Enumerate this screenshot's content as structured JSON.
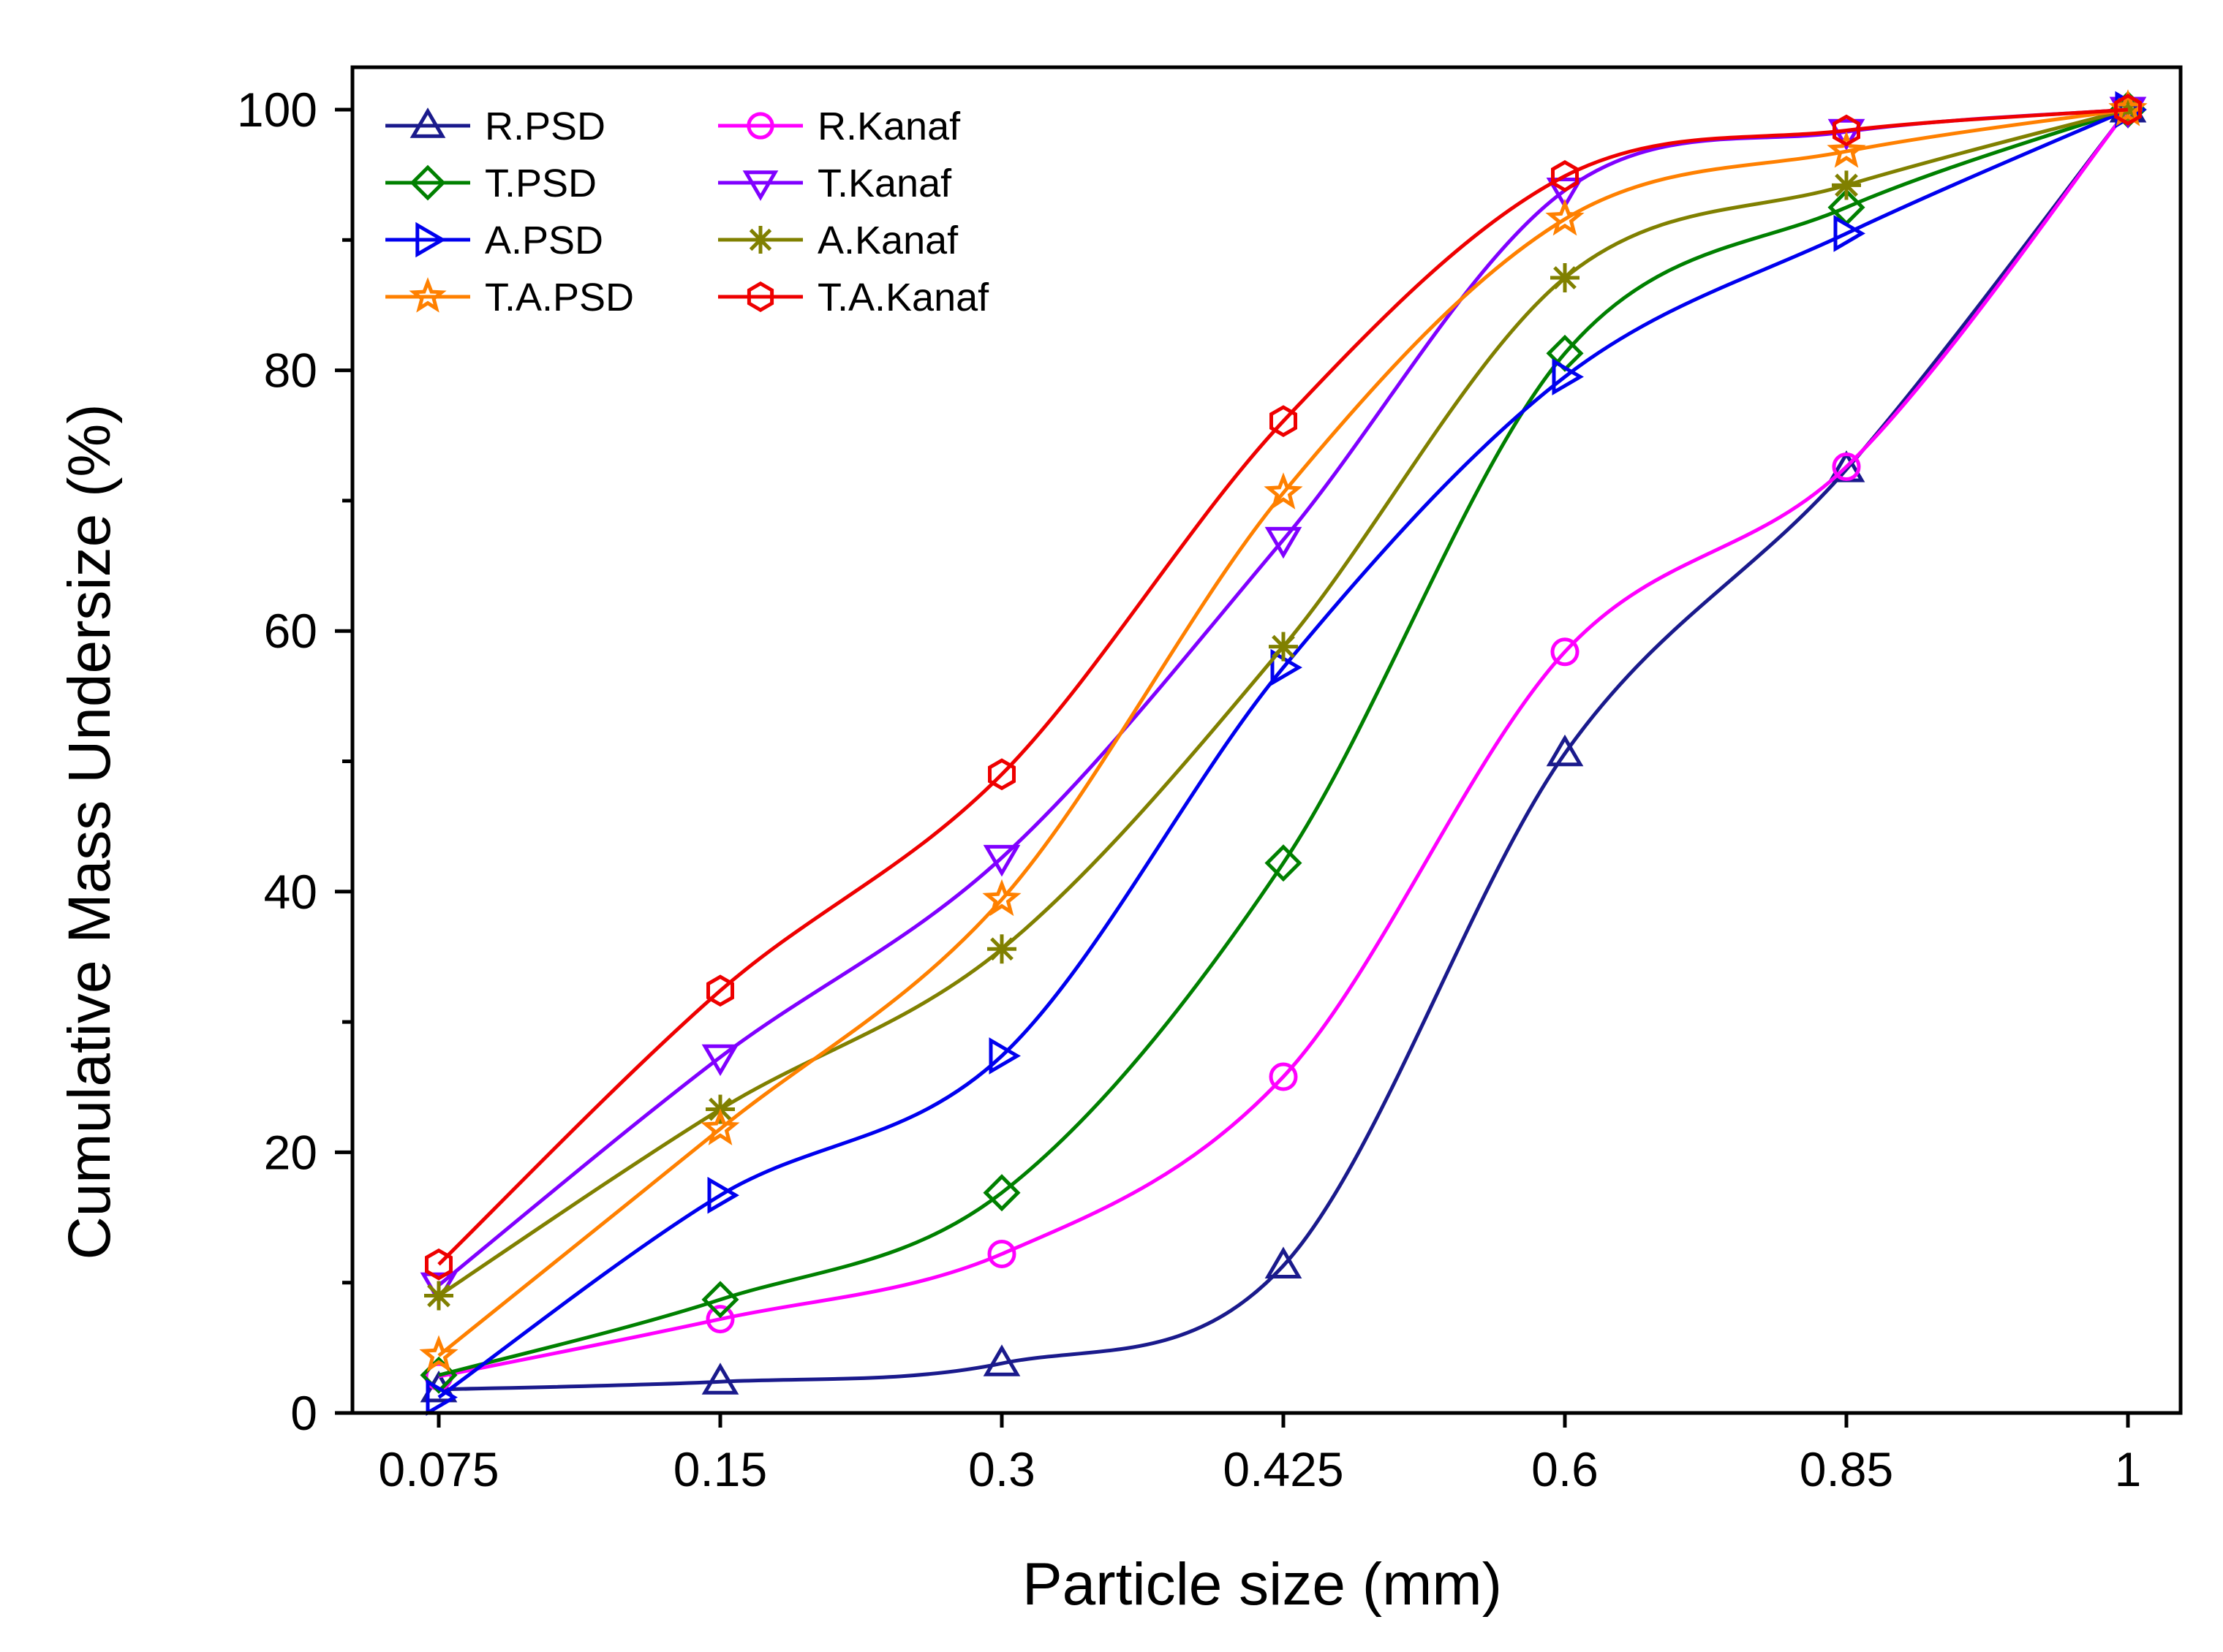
{
  "chart_data": {
    "type": "line",
    "title": "",
    "xlabel": "Particle size (mm)",
    "ylabel": "Cumulative Mass Undersize (%)",
    "categories": [
      "0.075",
      "0.15",
      "0.3",
      "0.425",
      "0.6",
      "0.85",
      "1"
    ],
    "ylim": [
      0,
      100
    ],
    "yticks": [
      0,
      20,
      40,
      60,
      80,
      100
    ],
    "grid": false,
    "legend_position": "top-left",
    "series": [
      {
        "name": "R.PSD",
        "color": "#1a1a8c",
        "marker": "triangle-up",
        "values": [
          1.8,
          2.4,
          3.8,
          11.3,
          50.6,
          72.4,
          100
        ]
      },
      {
        "name": "R.Kanaf",
        "color": "#ff00ff",
        "marker": "circle",
        "values": [
          2.8,
          7.2,
          12.2,
          25.8,
          58.4,
          72.6,
          100
        ]
      },
      {
        "name": "T.PSD",
        "color": "#008000",
        "marker": "diamond",
        "values": [
          2.9,
          8.7,
          16.9,
          42.2,
          81.3,
          92.5,
          100
        ]
      },
      {
        "name": "T.Kanaf",
        "color": "#8000ff",
        "marker": "triangle-down",
        "values": [
          9.8,
          27.3,
          42.6,
          67.0,
          93.8,
          98.3,
          100
        ]
      },
      {
        "name": "A.PSD",
        "color": "#0000ee",
        "marker": "triangle-right",
        "values": [
          1.2,
          16.7,
          27.4,
          57.2,
          79.5,
          90.5,
          100
        ]
      },
      {
        "name": "A.Kanaf",
        "color": "#808000",
        "marker": "asterisk",
        "values": [
          9.0,
          23.3,
          35.6,
          58.8,
          87.1,
          94.2,
          100
        ]
      },
      {
        "name": "T.A.PSD",
        "color": "#ff8000",
        "marker": "star",
        "values": [
          4.4,
          21.8,
          39.4,
          70.6,
          91.6,
          96.8,
          100
        ]
      },
      {
        "name": "T.A.Kanaf",
        "color": "#ee0000",
        "marker": "hexagon",
        "values": [
          11.4,
          32.4,
          49.0,
          76.1,
          94.9,
          98.4,
          100
        ]
      }
    ]
  }
}
